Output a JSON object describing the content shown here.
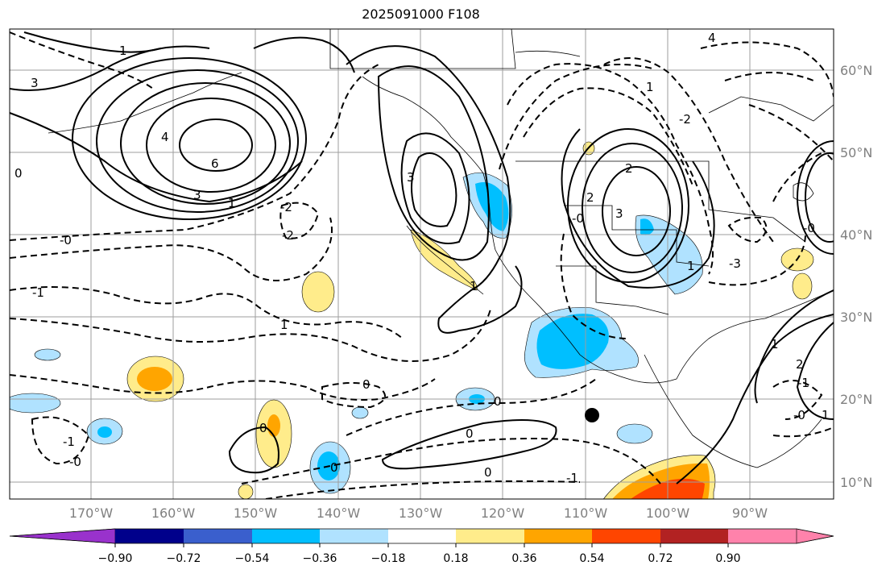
{
  "title": "2025091000 F108",
  "map": {
    "lon_labels": [
      "170°W",
      "160°W",
      "150°W",
      "140°W",
      "130°W",
      "120°W",
      "110°W",
      "100°W",
      "90°W"
    ],
    "lat_labels": [
      "60°N",
      "50°N",
      "40°N",
      "30°N",
      "20°N",
      "10°N"
    ],
    "contour_labels": [
      "1",
      "3",
      "4",
      "6",
      "3",
      "1",
      "0",
      "-0",
      "-2",
      "-2",
      "3",
      "1",
      "-1",
      "1",
      "0",
      "0",
      "0",
      "-1",
      "-0",
      "-1",
      "2",
      "2",
      "-0",
      "1",
      "1",
      "4",
      "3",
      "-3",
      "1",
      "2",
      "0",
      "0",
      "0",
      "-0",
      "1",
      "-0",
      "-1",
      "-2"
    ],
    "marker": "storm-center-dot"
  },
  "colorbar": {
    "colors": [
      "#9932cc",
      "#00008b",
      "#3a5fcd",
      "#00bfff",
      "#b0e2ff",
      "#ffffff",
      "#ffec8b",
      "#ffa500",
      "#ff4500",
      "#b22222",
      "#ff82ab"
    ],
    "ticks": [
      "−0.90",
      "−0.72",
      "−0.54",
      "−0.36",
      "−0.18",
      "0.18",
      "0.36",
      "0.54",
      "0.72",
      "0.90"
    ]
  }
}
